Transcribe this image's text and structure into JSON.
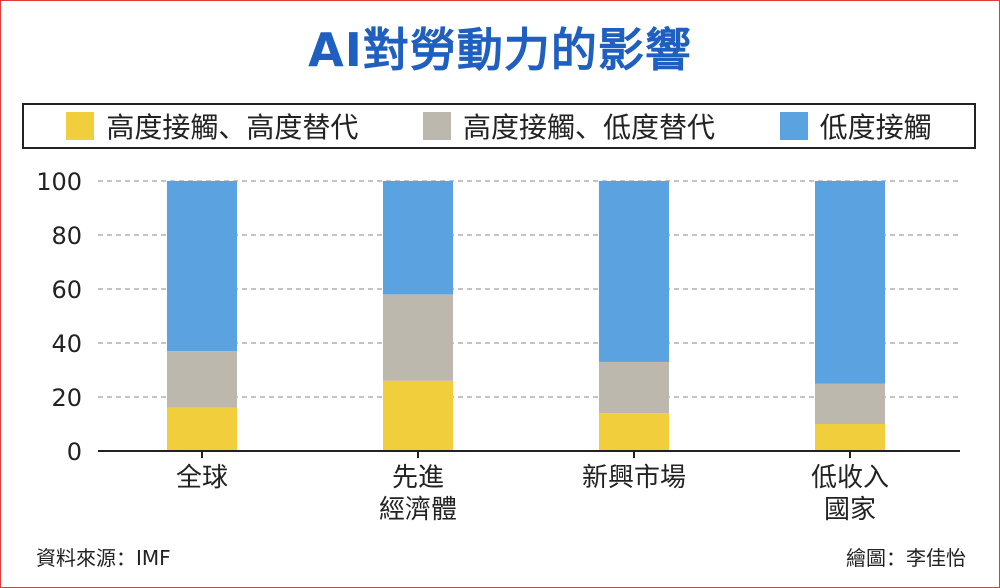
{
  "title": "AI對勞動力的影響",
  "legend": [
    {
      "label": "高度接觸、高度替代",
      "color": "#f1ce3c"
    },
    {
      "label": "高度接觸、低度替代",
      "color": "#bdb8ad"
    },
    {
      "label": "低度接觸",
      "color": "#5aa2e0"
    }
  ],
  "source": "資料來源：IMF",
  "credit": "繪圖：李佳怡",
  "chart_data": {
    "type": "bar",
    "stacked": true,
    "categories": [
      [
        "全球"
      ],
      [
        "先進",
        "經濟體"
      ],
      [
        "新興市場"
      ],
      [
        "低收入",
        "國家"
      ]
    ],
    "series": [
      {
        "name": "高度接觸、高度替代",
        "color": "#f1ce3c",
        "values": [
          16,
          26,
          14,
          10
        ]
      },
      {
        "name": "高度接觸、低度替代",
        "color": "#bdb8ad",
        "values": [
          21,
          32,
          19,
          15
        ]
      },
      {
        "name": "低度接觸",
        "color": "#5aa2e0",
        "values": [
          63,
          42,
          67,
          75
        ]
      }
    ],
    "yticks": [
      0,
      20,
      40,
      60,
      80,
      100
    ],
    "ylim": [
      0,
      100
    ],
    "grid": true,
    "legend_position": "top"
  }
}
